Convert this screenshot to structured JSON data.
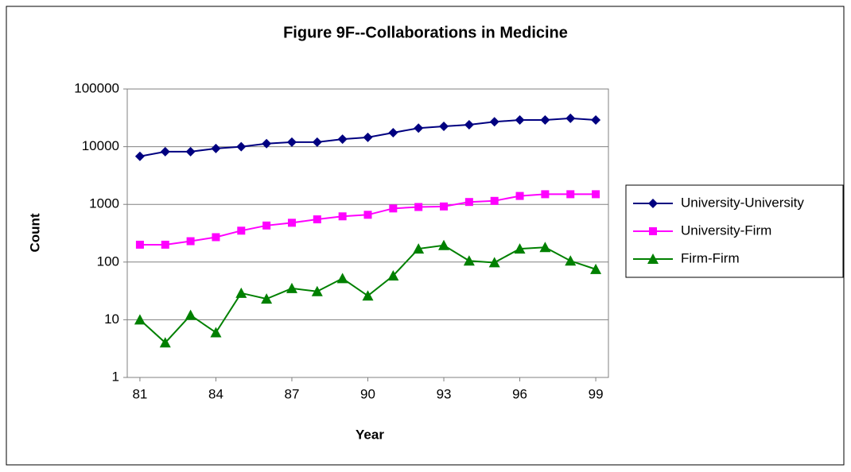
{
  "chart_data": {
    "type": "line",
    "title": "Figure 9F--Collaborations in Medicine",
    "x_label": "Year",
    "y_label": "Count",
    "x": [
      81,
      82,
      83,
      84,
      85,
      86,
      87,
      88,
      89,
      90,
      91,
      92,
      93,
      94,
      95,
      96,
      97,
      98,
      99
    ],
    "xlim": [
      80.5,
      99.5
    ],
    "xticks": [
      81,
      84,
      87,
      90,
      93,
      96,
      99
    ],
    "ylim": [
      1,
      100000
    ],
    "yticks": [
      1,
      10,
      100,
      1000,
      10000,
      100000
    ],
    "y_scale": "log",
    "grid": true,
    "legend": "right",
    "series": [
      {
        "name": "University-University",
        "color": "#000080",
        "marker": "diamond",
        "values": [
          6800,
          8200,
          8200,
          9300,
          10000,
          11300,
          12000,
          12000,
          13500,
          14500,
          17500,
          21000,
          22500,
          24000,
          27000,
          29000,
          29000,
          31000,
          29000
        ]
      },
      {
        "name": "University-Firm",
        "color": "#ff00ff",
        "marker": "square",
        "values": [
          200,
          200,
          230,
          270,
          350,
          430,
          480,
          550,
          620,
          660,
          850,
          900,
          920,
          1100,
          1150,
          1400,
          1500,
          1500,
          1500
        ]
      },
      {
        "name": "Firm-Firm",
        "color": "#008000",
        "marker": "triangle",
        "values": [
          10,
          4,
          12,
          6,
          29,
          23,
          35,
          31,
          52,
          26,
          58,
          170,
          195,
          105,
          98,
          170,
          180,
          105,
          75
        ]
      }
    ]
  }
}
